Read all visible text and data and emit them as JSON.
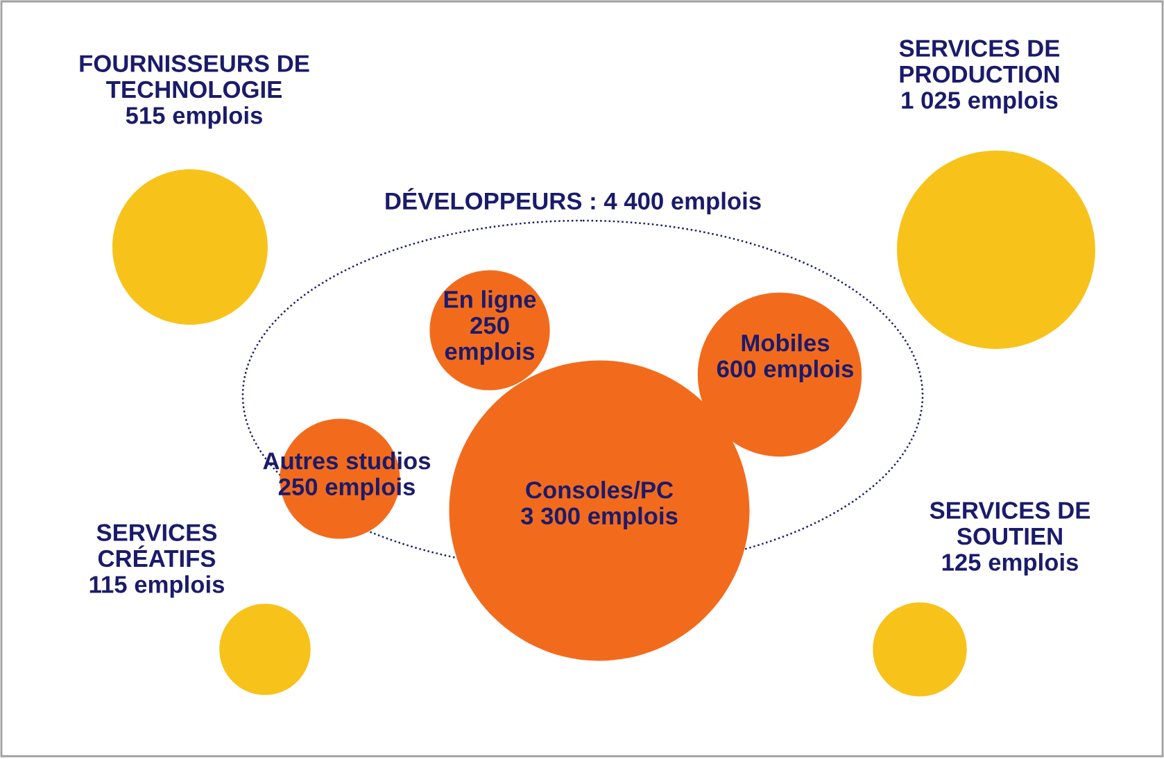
{
  "chart_data": {
    "type": "other",
    "categories": [
      "FOURNISSEURS DE\nTECHNOLOGIE",
      "SERVICES DE\nPRODUCTION",
      "En ligne",
      "Mobiles",
      "Autres studios",
      "Consoles/PC",
      "SERVICES\nCRÉATIFS",
      "SERVICES DE\nSOUTIEN"
    ],
    "values": [
      515,
      1025,
      250,
      600,
      250,
      3300,
      115,
      125
    ],
    "value_labels": [
      "515 emplois",
      "1 025 emplois",
      "250\nemplois",
      "600 emplois",
      "250 emplois",
      "3 300 emplois",
      "115 emplois",
      "125 emplois"
    ],
    "colors": [
      "#f7c21a",
      "#f7c21a",
      "#f26b1d",
      "#f26b1d",
      "#f26b1d",
      "#f26b1d",
      "#f7c21a",
      "#f7c21a"
    ],
    "annotations": [
      "DÉVELOPPEURS : 4 400 emplois"
    ]
  }
}
